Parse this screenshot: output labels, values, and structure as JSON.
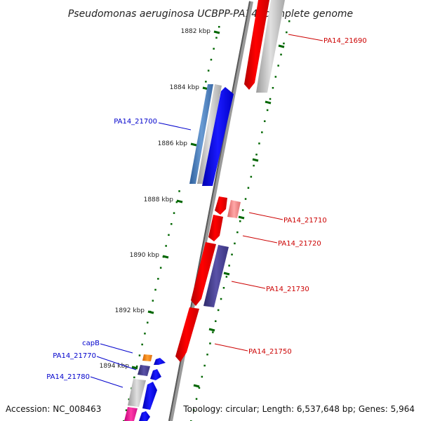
{
  "title": "Pseudomonas aeruginosa UCBPP-PA14, complete genome",
  "footer": {
    "accession": "Accession: NC_008463",
    "topology": "Topology: circular; Length: 6,537,648 bp; Genes: 5,964"
  },
  "ticks": [
    "1882 kbp",
    "1884 kbp",
    "1886 kbp",
    "1888 kbp",
    "1890 kbp",
    "1892 kbp",
    "1894 kbp"
  ],
  "genes_right": [
    "PA14_21690",
    "PA14_21710",
    "PA14_21720",
    "PA14_21730",
    "PA14_21750"
  ],
  "genes_left": [
    "PA14_21700",
    "capB",
    "PA14_21770",
    "PA14_21780"
  ],
  "colors": {
    "forward_label": "#cc0000",
    "reverse_label": "#0000cc",
    "tick": "#006600",
    "backbone": "#7a7a7a"
  }
}
